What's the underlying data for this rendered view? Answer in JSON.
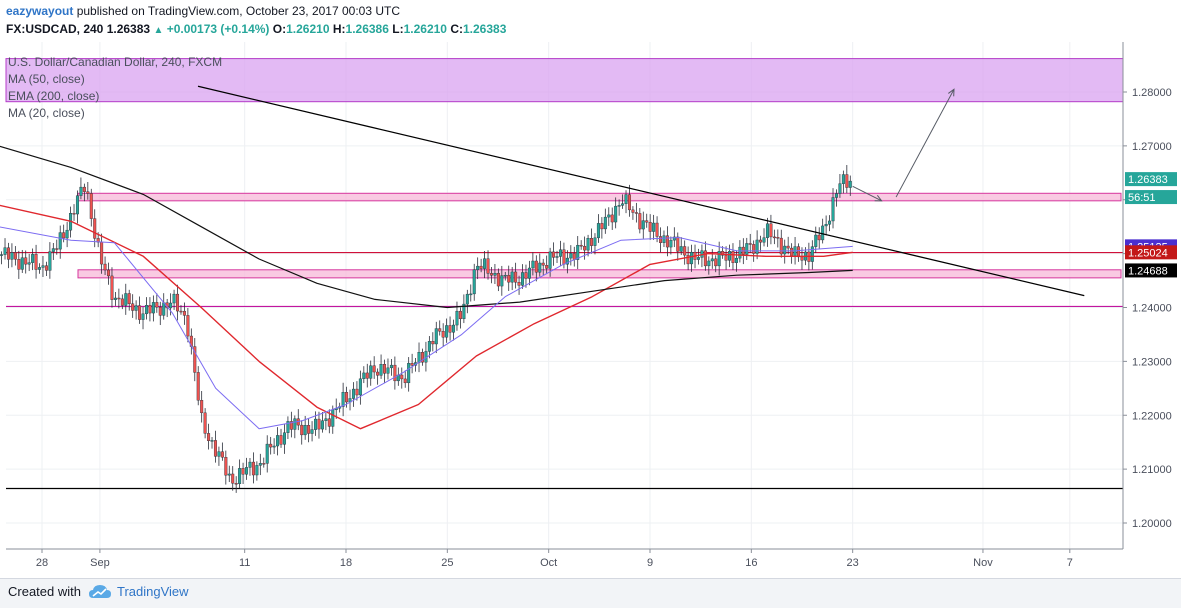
{
  "header": {
    "author": "eazywayout",
    "published_text": "published on TradingView.com, October 23, 2017 00:03 UTC",
    "symbol": "FX:USDCAD, 240",
    "last": "1.26383",
    "change": "+0.00173 (+0.14%)",
    "o_label": "O:",
    "o": "1.26210",
    "h_label": "H:",
    "h": "1.26386",
    "l_label": "L:",
    "l": "1.26210",
    "c_label": "C:",
    "c": "1.26383"
  },
  "legend": {
    "title": "U.S. Dollar/Canadian Dollar, 240, FXCM",
    "ma50": "MA (50, close)",
    "ema200": "EMA (200, close)",
    "ma20": "MA (20, close)"
  },
  "footer": {
    "created": "Created with",
    "brand": "TradingView"
  },
  "colors": {
    "up": "#26a69a",
    "down": "#ef5350",
    "ma50": "#e0282e",
    "ema200": "#111111",
    "ma20": "#7c6cf2",
    "zone_purple": "#d9a3f0",
    "zone_pink": "#f7b8d8",
    "line_red": "#d0103a",
    "line_magenta": "#c2169f"
  },
  "chart_data": {
    "type": "candlestick",
    "title": "U.S. Dollar/Canadian Dollar, 240, FXCM",
    "ylim": [
      1.1955,
      1.286
    ],
    "y_ticks": [
      "1.20000",
      "1.21000",
      "1.22000",
      "1.23000",
      "1.24000",
      "1.25000",
      "1.26000",
      "1.27000",
      "1.28000"
    ],
    "y_tick_values": [
      1.2,
      1.21,
      1.22,
      1.23,
      1.24,
      1.25,
      1.26,
      1.27,
      1.28
    ],
    "x_ticks": [
      "28",
      "Sep",
      "11",
      "18",
      "25",
      "Oct",
      "9",
      "16",
      "23",
      "Nov",
      "7"
    ],
    "x_tick_dates": [
      "2017-08-28",
      "2017-09-01",
      "2017-09-11",
      "2017-09-18",
      "2017-09-25",
      "2017-10-02",
      "2017-10-09",
      "2017-10-16",
      "2017-10-23",
      "2017-11-01",
      "2017-11-07"
    ],
    "price_badges": [
      {
        "text": "1.26383",
        "value": 1.26383,
        "color": "#26a69a"
      },
      {
        "text": "56:51",
        "value": 1.2605,
        "color": "#26a69a"
      },
      {
        "text": "1.25135",
        "value": 1.25135,
        "color": "#4b2fcf"
      },
      {
        "text": "1.25024",
        "value": 1.25024,
        "color": "#c31818"
      },
      {
        "text": "1.24688",
        "value": 1.24688,
        "color": "#000000"
      }
    ],
    "price_path": [
      [
        "2017-08-25",
        1.25
      ],
      [
        "2017-08-28",
        1.2475
      ],
      [
        "2017-08-29",
        1.251
      ],
      [
        "2017-08-30",
        1.257
      ],
      [
        "2017-08-31",
        1.263
      ],
      [
        "2017-09-01",
        1.249
      ],
      [
        "2017-09-02",
        1.242
      ],
      [
        "2017-09-04",
        1.239
      ],
      [
        "2017-09-06",
        1.241
      ],
      [
        "2017-09-07",
        1.238
      ],
      [
        "2017-09-08",
        1.219
      ],
      [
        "2017-09-10",
        1.208
      ],
      [
        "2017-09-12",
        1.211
      ],
      [
        "2017-09-14",
        1.218
      ],
      [
        "2017-09-16",
        1.2175
      ],
      [
        "2017-09-18",
        1.223
      ],
      [
        "2017-09-20",
        1.229
      ],
      [
        "2017-09-22",
        1.227
      ],
      [
        "2017-09-24",
        1.234
      ],
      [
        "2017-09-26",
        1.2385
      ],
      [
        "2017-09-27",
        1.248
      ],
      [
        "2017-09-29",
        1.245
      ],
      [
        "2017-09-30",
        1.2455
      ],
      [
        "2017-10-02",
        1.249
      ],
      [
        "2017-10-04",
        1.25
      ],
      [
        "2017-10-06",
        1.256
      ],
      [
        "2017-10-07",
        1.26
      ],
      [
        "2017-10-09",
        1.2545
      ],
      [
        "2017-10-11",
        1.251
      ],
      [
        "2017-10-12",
        1.249
      ],
      [
        "2017-10-14",
        1.249
      ],
      [
        "2017-10-16",
        1.251
      ],
      [
        "2017-10-17",
        1.254
      ],
      [
        "2017-10-18",
        1.252
      ],
      [
        "2017-10-19",
        1.2495
      ],
      [
        "2017-10-20",
        1.25
      ],
      [
        "2017-10-21",
        1.2545
      ],
      [
        "2017-10-22",
        1.2625
      ],
      [
        "2017-10-23",
        1.26383
      ]
    ],
    "series": [
      {
        "name": "MA (50, close)",
        "type": "line",
        "points": [
          [
            "2017-08-25",
            1.259
          ],
          [
            "2017-08-30",
            1.256
          ],
          [
            "2017-09-04",
            1.2495
          ],
          [
            "2017-09-08",
            1.24
          ],
          [
            "2017-09-12",
            1.23
          ],
          [
            "2017-09-16",
            1.2215
          ],
          [
            "2017-09-19",
            1.2175
          ],
          [
            "2017-09-23",
            1.222
          ],
          [
            "2017-09-27",
            1.231
          ],
          [
            "2017-10-01",
            1.237
          ],
          [
            "2017-10-05",
            1.242
          ],
          [
            "2017-10-09",
            1.248
          ],
          [
            "2017-10-13",
            1.25
          ],
          [
            "2017-10-17",
            1.2495
          ],
          [
            "2017-10-21",
            1.2495
          ],
          [
            "2017-10-23",
            1.25024
          ]
        ]
      },
      {
        "name": "EMA (200, close)",
        "type": "line",
        "points": [
          [
            "2017-08-25",
            1.27
          ],
          [
            "2017-08-30",
            1.266
          ],
          [
            "2017-09-04",
            1.261
          ],
          [
            "2017-09-08",
            1.255
          ],
          [
            "2017-09-12",
            1.249
          ],
          [
            "2017-09-16",
            1.2445
          ],
          [
            "2017-09-20",
            1.2415
          ],
          [
            "2017-09-25",
            1.24
          ],
          [
            "2017-09-30",
            1.241
          ],
          [
            "2017-10-05",
            1.243
          ],
          [
            "2017-10-10",
            1.245
          ],
          [
            "2017-10-15",
            1.246
          ],
          [
            "2017-10-20",
            1.2465
          ],
          [
            "2017-10-23",
            1.24688
          ]
        ]
      },
      {
        "name": "MA (20, close)",
        "type": "line",
        "points": [
          [
            "2017-08-25",
            1.255
          ],
          [
            "2017-08-30",
            1.2525
          ],
          [
            "2017-09-02",
            1.252
          ],
          [
            "2017-09-06",
            1.239
          ],
          [
            "2017-09-09",
            1.225
          ],
          [
            "2017-09-12",
            1.2175
          ],
          [
            "2017-09-15",
            1.219
          ],
          [
            "2017-09-18",
            1.222
          ],
          [
            "2017-09-22",
            1.228
          ],
          [
            "2017-09-26",
            1.235
          ],
          [
            "2017-09-29",
            1.242
          ],
          [
            "2017-10-03",
            1.248
          ],
          [
            "2017-10-07",
            1.2525
          ],
          [
            "2017-10-11",
            1.253
          ],
          [
            "2017-10-15",
            1.2505
          ],
          [
            "2017-10-19",
            1.2505
          ],
          [
            "2017-10-23",
            1.25135
          ]
        ]
      }
    ],
    "zones": [
      {
        "name": "resistance-zone-purple",
        "from": 1.2782,
        "to": 1.2862,
        "color": "#d9a3f0"
      },
      {
        "name": "zone-pink-upper",
        "from": 1.2598,
        "to": 1.2612,
        "color": "#f7b8d8"
      },
      {
        "name": "zone-pink-lower",
        "from": 1.2455,
        "to": 1.247,
        "color": "#f7b8d8"
      }
    ],
    "hlines": [
      {
        "name": "red-line",
        "value": 1.2502,
        "color": "#d0103a"
      },
      {
        "name": "magenta-line",
        "value": 1.2402,
        "color": "#c2169f"
      },
      {
        "name": "black-support-line",
        "value": 1.2064,
        "color": "#000000"
      }
    ],
    "trendline": {
      "from": [
        "2017-08-31",
        1.286
      ],
      "to": [
        "2017-11-08",
        1.2422
      ]
    },
    "projection_arrows": [
      {
        "from": [
          "2017-10-23",
          1.2625
        ],
        "to": [
          "2017-10-25",
          1.2598
        ]
      },
      {
        "from": [
          "2017-10-26",
          1.2605
        ],
        "to": [
          "2017-10-30",
          1.2805
        ]
      }
    ]
  }
}
